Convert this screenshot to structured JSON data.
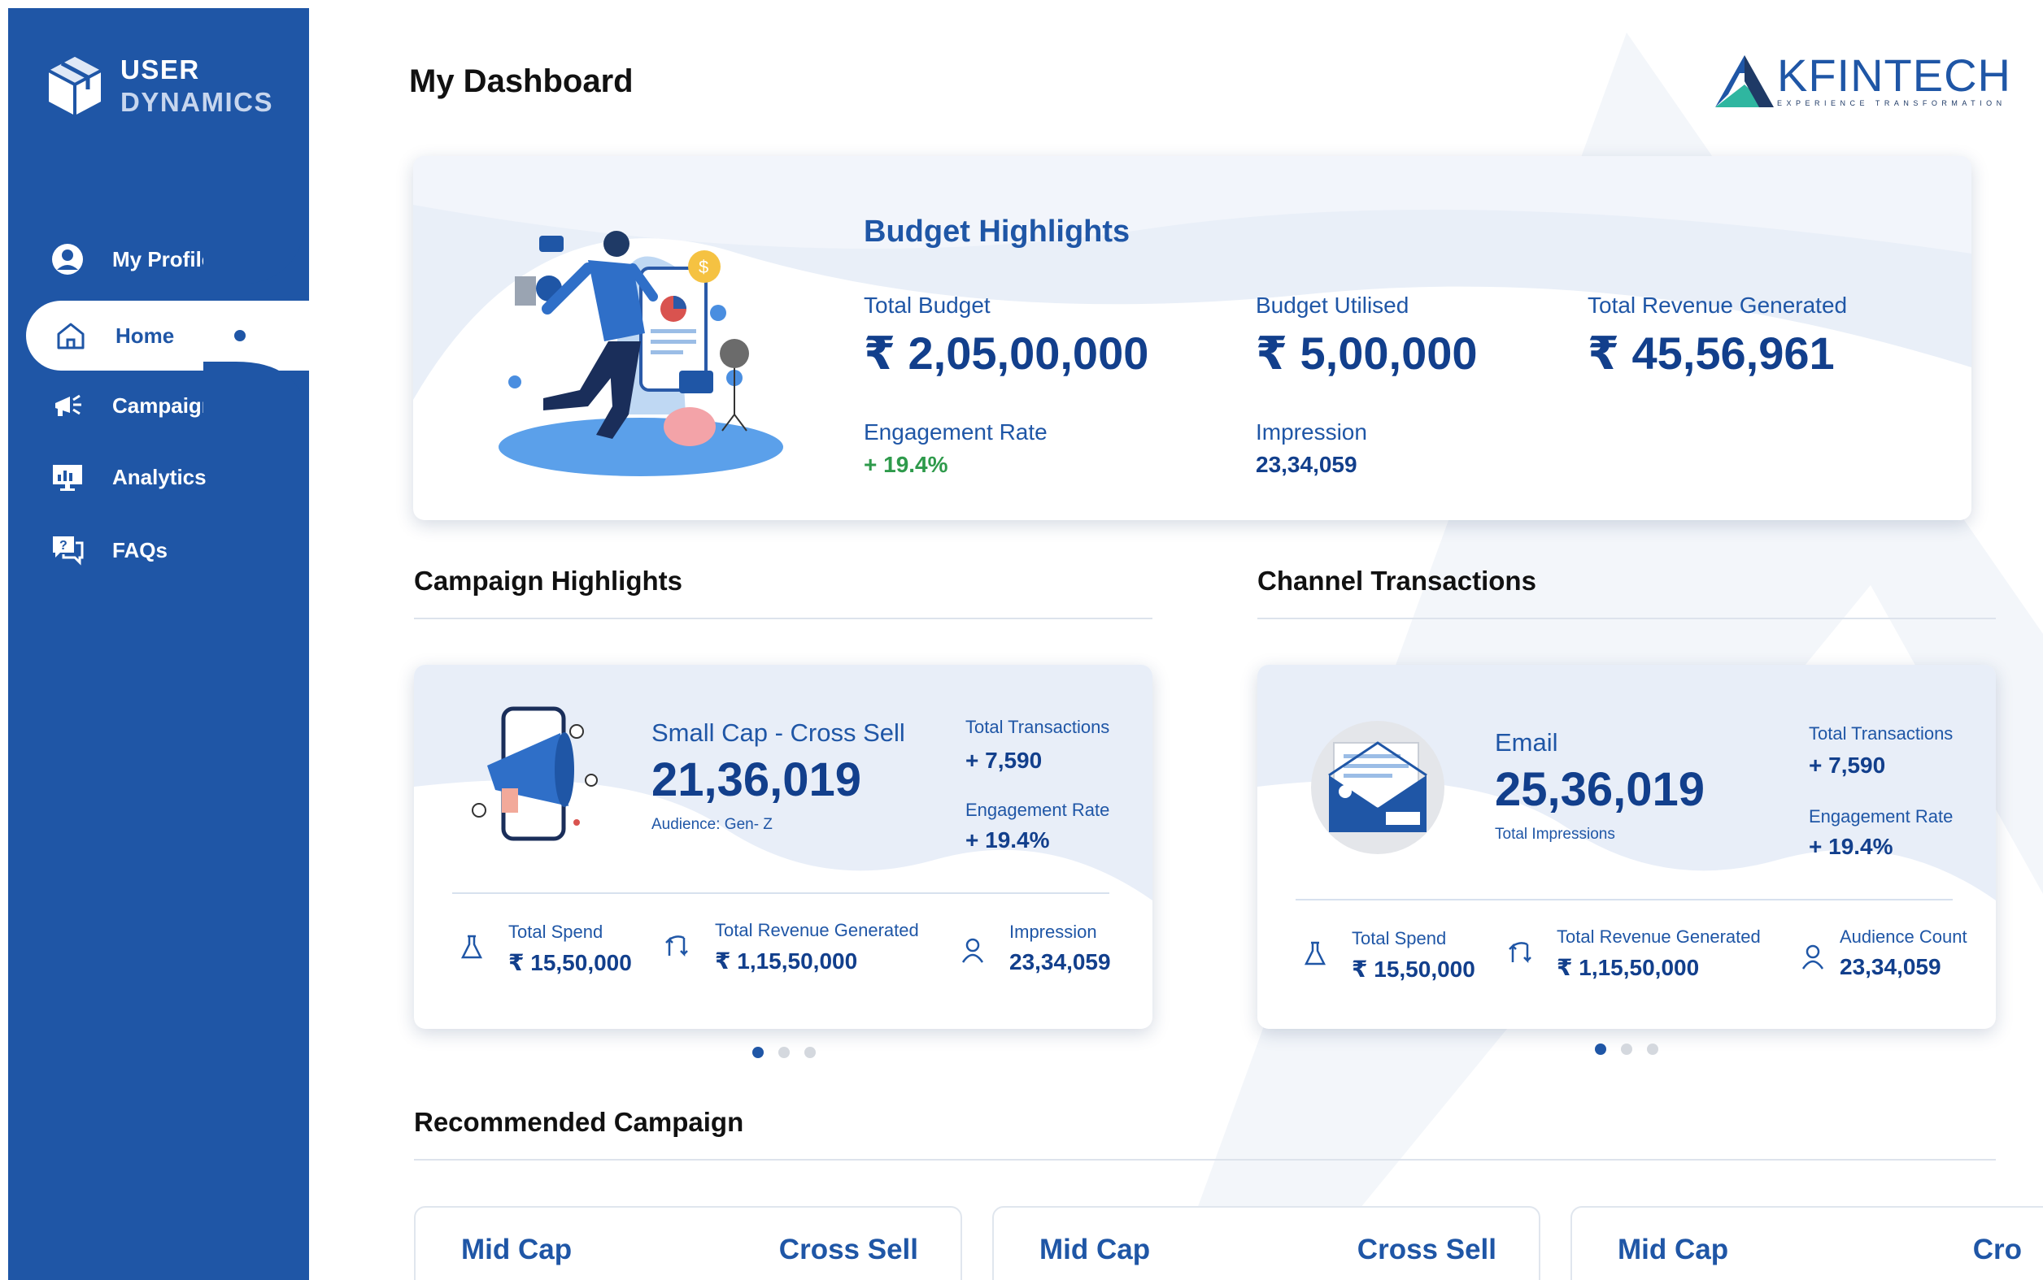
{
  "brand": {
    "line1": "USER",
    "line2": "DYNAMICS"
  },
  "nav": {
    "profile": "My Profile",
    "home": "Home",
    "campaign": "Campaign",
    "analytics": "Analytics",
    "faqs": "FAQs"
  },
  "header": {
    "title": "My Dashboard"
  },
  "logo": {
    "word": "KFINTECH",
    "tagline": "EXPERIENCE TRANSFORMATION"
  },
  "budget": {
    "title": "Budget Highlights",
    "total_budget_label": "Total Budget",
    "total_budget": "₹ 2,05,00,000",
    "utilised_label": "Budget Utilised",
    "utilised": "₹ 5,00,000",
    "revenue_label": "Total Revenue Generated",
    "revenue": "₹ 45,56,961",
    "engagement_label": "Engagement Rate",
    "engagement": "+ 19.4%",
    "impression_label": "Impression",
    "impression": "23,34,059"
  },
  "campaign_highlights": {
    "section_title": "Campaign Highlights",
    "name": "Small Cap - Cross Sell",
    "value": "21,36,019",
    "audience": "Audience: Gen- Z",
    "tx_label": "Total Transactions",
    "tx": "+ 7,590",
    "eng_label": "Engagement Rate",
    "eng": "+ 19.4%",
    "spend_label": "Total Spend",
    "spend": "₹ 15,50,000",
    "rev_label": "Total Revenue Generated",
    "rev": "₹ 1,15,50,000",
    "imp_label": "Impression",
    "imp": "23,34,059"
  },
  "channel_transactions": {
    "section_title": "Channel Transactions",
    "name": "Email",
    "value": "25,36,019",
    "sub": "Total Impressions",
    "tx_label": "Total Transactions",
    "tx": "+ 7,590",
    "eng_label": "Engagement Rate",
    "eng": "+ 19.4%",
    "spend_label": "Total Spend",
    "spend": "₹ 15,50,000",
    "rev_label": "Total Revenue Generated",
    "rev": "₹ 1,15,50,000",
    "aud_label": "Audience Count",
    "aud": "23,34,059"
  },
  "recommended": {
    "section_title": "Recommended Campaign",
    "cards": [
      {
        "left": "Mid Cap",
        "right": "Cross Sell"
      },
      {
        "left": "Mid Cap",
        "right": "Cross Sell"
      },
      {
        "left": "Mid Cap",
        "right": "Cro"
      }
    ]
  },
  "colors": {
    "primary": "#1f56a6",
    "dark_value": "#123f8c",
    "positive": "#2e9a4b"
  }
}
